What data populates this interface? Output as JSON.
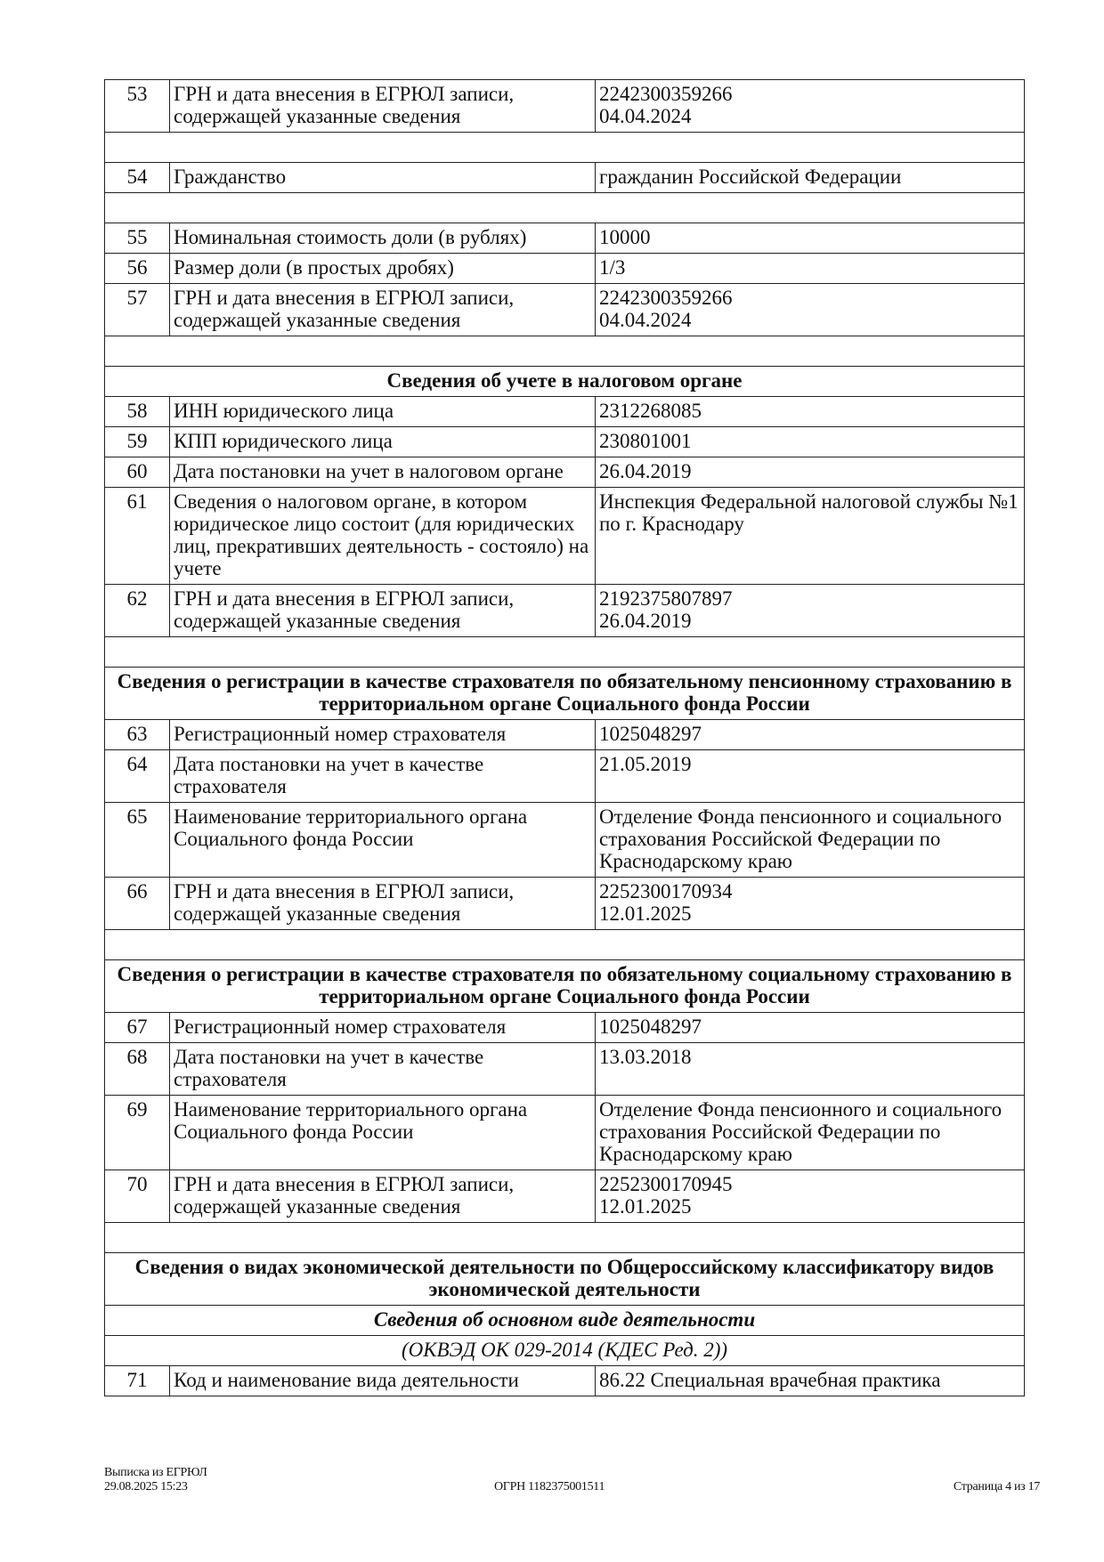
{
  "rows": [
    {
      "type": "row",
      "num": "53",
      "label": "ГРН и дата внесения в ЕГРЮЛ записи, содержащей указанные сведения",
      "value": [
        "2242300359266",
        "04.04.2024"
      ]
    },
    {
      "type": "empty"
    },
    {
      "type": "row",
      "num": "54",
      "label": "Гражданство",
      "value": [
        "гражданин Российской Федерации"
      ]
    },
    {
      "type": "empty"
    },
    {
      "type": "row",
      "num": "55",
      "label": "Номинальная стоимость доли (в рублях)",
      "value": [
        "10000"
      ]
    },
    {
      "type": "row",
      "num": "56",
      "label": "Размер доли (в простых дробях)",
      "value": [
        "1/3"
      ]
    },
    {
      "type": "row",
      "num": "57",
      "label": "ГРН и дата внесения в ЕГРЮЛ записи, содержащей указанные сведения",
      "value": [
        "2242300359266",
        "04.04.2024"
      ]
    },
    {
      "type": "empty"
    },
    {
      "type": "header",
      "style": "hdr",
      "text": "Сведения об учете в налоговом органе"
    },
    {
      "type": "row",
      "num": "58",
      "label": "ИНН юридического лица",
      "value": [
        "2312268085"
      ]
    },
    {
      "type": "row",
      "num": "59",
      "label": "КПП юридического лица",
      "value": [
        "230801001"
      ]
    },
    {
      "type": "row",
      "num": "60",
      "label": "Дата постановки на учет в налоговом органе",
      "value": [
        "26.04.2019"
      ]
    },
    {
      "type": "row",
      "num": "61",
      "label": "Сведения о налоговом органе, в котором юридическое лицо состоит (для юридических лиц, прекративших деятельность - состояло) на учете",
      "value": [
        "Инспекция Федеральной налоговой службы №1 по г. Краснодару"
      ]
    },
    {
      "type": "row",
      "num": "62",
      "label": "ГРН и дата внесения в ЕГРЮЛ записи, содержащей указанные сведения",
      "value": [
        "2192375807897",
        "26.04.2019"
      ]
    },
    {
      "type": "empty"
    },
    {
      "type": "header",
      "style": "hdr",
      "text": "Сведения о регистрации в качестве страхователя по обязательному пенсионному страхованию в территориальном органе Социального фонда России"
    },
    {
      "type": "row",
      "num": "63",
      "label": "Регистрационный номер страхователя",
      "value": [
        "1025048297"
      ]
    },
    {
      "type": "row",
      "num": "64",
      "label": "Дата постановки на учет в качестве страхователя",
      "value": [
        "21.05.2019"
      ]
    },
    {
      "type": "row",
      "num": "65",
      "label": "Наименование территориального органа Социального фонда России",
      "value": [
        "Отделение Фонда пенсионного и социального страхования Российской Федерации по Краснодарскому краю"
      ]
    },
    {
      "type": "row",
      "num": "66",
      "label": "ГРН и дата внесения в ЕГРЮЛ записи, содержащей указанные сведения",
      "value": [
        "2252300170934",
        "12.01.2025"
      ]
    },
    {
      "type": "empty"
    },
    {
      "type": "header",
      "style": "hdr",
      "text": "Сведения о регистрации в качестве страхователя по обязательному социальному страхованию в территориальном органе Социального фонда России"
    },
    {
      "type": "row",
      "num": "67",
      "label": "Регистрационный номер страхователя",
      "value": [
        "1025048297"
      ]
    },
    {
      "type": "row",
      "num": "68",
      "label": "Дата постановки на учет в качестве страхователя",
      "value": [
        "13.03.2018"
      ]
    },
    {
      "type": "row",
      "num": "69",
      "label": "Наименование территориального органа Социального фонда России",
      "value": [
        "Отделение Фонда пенсионного и социального страхования Российской Федерации по Краснодарскому краю"
      ]
    },
    {
      "type": "row",
      "num": "70",
      "label": "ГРН и дата внесения в ЕГРЮЛ записи, содержащей указанные сведения",
      "value": [
        "2252300170945",
        "12.01.2025"
      ]
    },
    {
      "type": "empty"
    },
    {
      "type": "header",
      "style": "hdr",
      "text": "Сведения о видах экономической деятельности по Общероссийскому классификатору видов экономической деятельности"
    },
    {
      "type": "header",
      "style": "italbold",
      "text": "Сведения об основном виде деятельности"
    },
    {
      "type": "header",
      "style": "ital",
      "text": "(ОКВЭД ОК 029-2014 (КДЕС Ред. 2))"
    },
    {
      "type": "row",
      "num": "71",
      "label": "Код и наименование вида деятельности",
      "value": [
        "86.22 Специальная врачебная практика"
      ]
    }
  ],
  "footer": {
    "doc_title": "Выписка из ЕГРЮЛ",
    "datetime": "29.08.2025 15:23",
    "ogrn": "ОГРН 1182375001511",
    "page": "Страница 4 из 17"
  }
}
